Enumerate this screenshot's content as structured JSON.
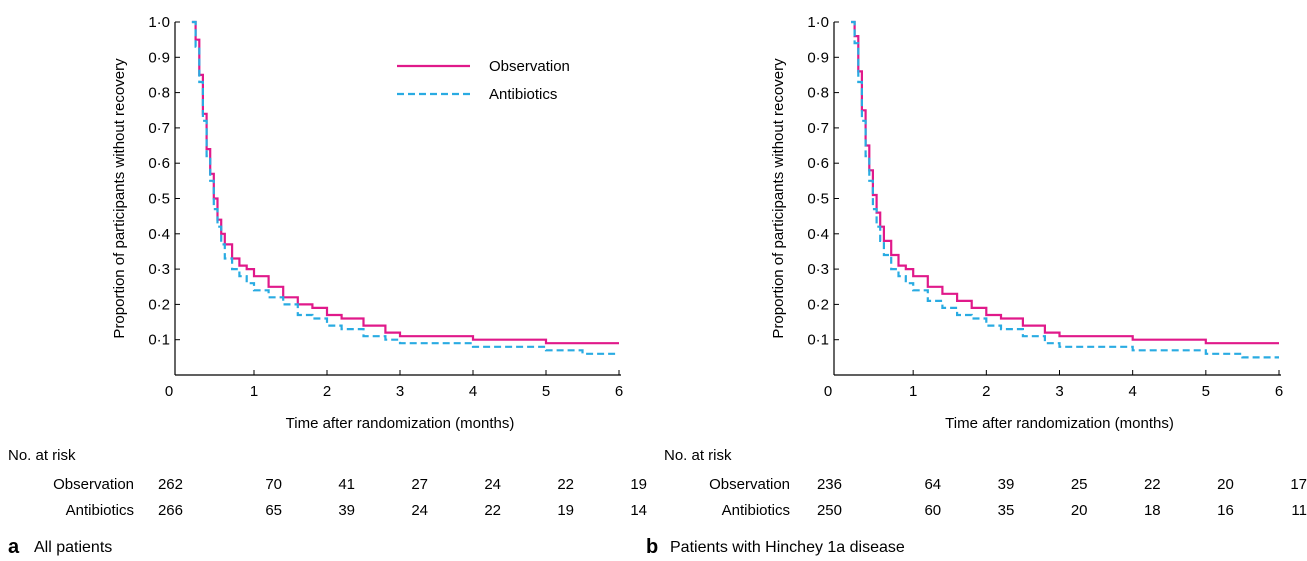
{
  "colors": {
    "observation": "#e0198a",
    "antibiotics": "#29abe2"
  },
  "chart_data": [
    {
      "type": "line",
      "panel_letter": "a",
      "caption": "All patients",
      "xlabel": "Time after randomization (months)",
      "ylabel": "Proportion of participants without recovery",
      "xlim": [
        0,
        6
      ],
      "ylim": [
        0,
        1.0
      ],
      "x_ticks": [
        "0",
        "1",
        "2",
        "3",
        "4",
        "5",
        "6"
      ],
      "y_ticks": [
        "0·1",
        "0·2",
        "0·3",
        "0·4",
        "0·5",
        "0·6",
        "0·7",
        "0·8",
        "0·9",
        "1·0"
      ],
      "legend": [
        "Observation",
        "Antibiotics"
      ],
      "legend_position": "top-right",
      "series": [
        {
          "name": "Observation",
          "style": "solid",
          "x": [
            0.15,
            0.2,
            0.25,
            0.3,
            0.35,
            0.4,
            0.45,
            0.5,
            0.55,
            0.6,
            0.7,
            0.8,
            0.9,
            1.0,
            1.2,
            1.4,
            1.6,
            1.8,
            2.0,
            2.2,
            2.5,
            2.8,
            3.0,
            3.5,
            4.0,
            4.5,
            5.0,
            5.5,
            6.0
          ],
          "y": [
            1.0,
            0.95,
            0.85,
            0.74,
            0.64,
            0.57,
            0.5,
            0.44,
            0.4,
            0.37,
            0.33,
            0.31,
            0.3,
            0.28,
            0.25,
            0.22,
            0.2,
            0.19,
            0.17,
            0.16,
            0.14,
            0.12,
            0.11,
            0.11,
            0.1,
            0.1,
            0.09,
            0.09,
            0.09
          ]
        },
        {
          "name": "Antibiotics",
          "style": "dashed",
          "x": [
            0.15,
            0.2,
            0.25,
            0.3,
            0.35,
            0.4,
            0.45,
            0.5,
            0.55,
            0.6,
            0.7,
            0.8,
            0.9,
            1.0,
            1.2,
            1.4,
            1.6,
            1.8,
            2.0,
            2.2,
            2.5,
            2.8,
            3.0,
            3.5,
            4.0,
            4.5,
            5.0,
            5.5,
            6.0
          ],
          "y": [
            1.0,
            0.93,
            0.83,
            0.72,
            0.62,
            0.55,
            0.47,
            0.42,
            0.37,
            0.33,
            0.3,
            0.28,
            0.26,
            0.24,
            0.22,
            0.2,
            0.17,
            0.16,
            0.14,
            0.13,
            0.11,
            0.1,
            0.09,
            0.09,
            0.08,
            0.08,
            0.07,
            0.06,
            0.06
          ]
        }
      ],
      "risk_table": {
        "header": "No. at risk",
        "rows": [
          {
            "name": "Observation",
            "values": [
              "262",
              "70",
              "41",
              "27",
              "24",
              "22",
              "19"
            ]
          },
          {
            "name": "Antibiotics",
            "values": [
              "266",
              "65",
              "39",
              "24",
              "22",
              "19",
              "14"
            ]
          }
        ]
      }
    },
    {
      "type": "line",
      "panel_letter": "b",
      "caption": "Patients with Hinchey 1a disease",
      "xlabel": "Time after randomization (months)",
      "ylabel": "Proportion of participants without recovery",
      "xlim": [
        0,
        6
      ],
      "ylim": [
        0,
        1.0
      ],
      "x_ticks": [
        "0",
        "1",
        "2",
        "3",
        "4",
        "5",
        "6"
      ],
      "y_ticks": [
        "0·1",
        "0·2",
        "0·3",
        "0·4",
        "0·5",
        "0·6",
        "0·7",
        "0·8",
        "0·9",
        "1·0"
      ],
      "series": [
        {
          "name": "Observation",
          "style": "solid",
          "x": [
            0.15,
            0.2,
            0.25,
            0.3,
            0.35,
            0.4,
            0.45,
            0.5,
            0.55,
            0.6,
            0.7,
            0.8,
            0.9,
            1.0,
            1.2,
            1.4,
            1.6,
            1.8,
            2.0,
            2.2,
            2.5,
            2.8,
            3.0,
            3.5,
            4.0,
            4.5,
            5.0,
            5.5,
            6.0
          ],
          "y": [
            1.0,
            0.96,
            0.86,
            0.75,
            0.65,
            0.58,
            0.51,
            0.46,
            0.42,
            0.38,
            0.34,
            0.31,
            0.3,
            0.28,
            0.25,
            0.23,
            0.21,
            0.19,
            0.17,
            0.16,
            0.14,
            0.12,
            0.11,
            0.11,
            0.1,
            0.1,
            0.09,
            0.09,
            0.09
          ]
        },
        {
          "name": "Antibiotics",
          "style": "dashed",
          "x": [
            0.15,
            0.2,
            0.25,
            0.3,
            0.35,
            0.4,
            0.45,
            0.5,
            0.55,
            0.6,
            0.7,
            0.8,
            0.9,
            1.0,
            1.2,
            1.4,
            1.6,
            1.8,
            2.0,
            2.2,
            2.5,
            2.8,
            3.0,
            3.5,
            4.0,
            4.5,
            5.0,
            5.5,
            6.0
          ],
          "y": [
            1.0,
            0.94,
            0.83,
            0.72,
            0.62,
            0.55,
            0.47,
            0.42,
            0.38,
            0.34,
            0.3,
            0.28,
            0.26,
            0.24,
            0.21,
            0.19,
            0.17,
            0.16,
            0.14,
            0.13,
            0.11,
            0.09,
            0.08,
            0.08,
            0.07,
            0.07,
            0.06,
            0.05,
            0.05
          ]
        }
      ],
      "risk_table": {
        "header": "No. at risk",
        "rows": [
          {
            "name": "Observation",
            "values": [
              "236",
              "64",
              "39",
              "25",
              "22",
              "20",
              "17"
            ]
          },
          {
            "name": "Antibiotics",
            "values": [
              "250",
              "60",
              "35",
              "20",
              "18",
              "16",
              "11"
            ]
          }
        ]
      }
    }
  ]
}
